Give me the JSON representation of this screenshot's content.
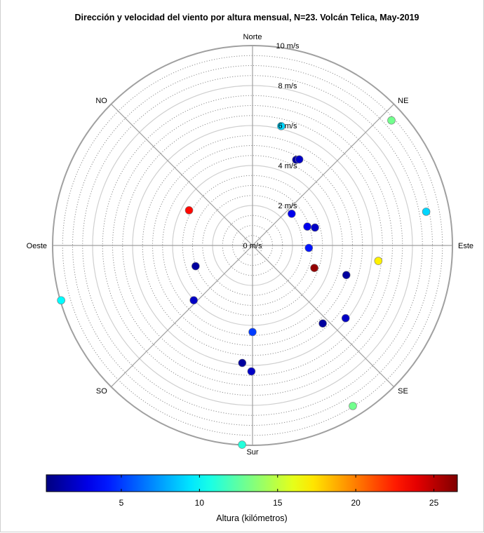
{
  "chart_data": {
    "type": "scatter",
    "subtype": "polar",
    "title": "Dirección y velocidad del viento por altura mensual, N=23. Volcán Telica, May-2019",
    "directions": [
      "Norte",
      "NE",
      "Este",
      "SE",
      "Sur",
      "SO",
      "Oeste",
      "NO"
    ],
    "direction_angles": [
      0,
      45,
      90,
      135,
      180,
      225,
      270,
      315
    ],
    "ring_labels": [
      "0 m/s",
      "2 m/s",
      "4 m/s",
      "6 m/s",
      "8 m/s",
      "10 m/s"
    ],
    "ring_values": [
      0,
      2,
      4,
      6,
      8,
      10
    ],
    "radial_unit": "m/s",
    "radial_max": 10,
    "grid": true,
    "colorbar": {
      "label": "Altura (kilómetros)",
      "min": 0.2,
      "max": 26.5,
      "ticks": [
        5,
        10,
        15,
        20,
        25
      ],
      "colormap": "jet",
      "placement": "bottom"
    },
    "points": [
      {
        "direction": 13.5,
        "speed": 6.14,
        "altura": 9
      },
      {
        "direction": 27,
        "speed": 4.81,
        "altura": 1
      },
      {
        "direction": 28.5,
        "speed": 4.9,
        "altura": 2
      },
      {
        "direction": 51,
        "speed": 2.52,
        "altura": 3
      },
      {
        "direction": 71,
        "speed": 2.9,
        "altura": 3
      },
      {
        "direction": 74,
        "speed": 3.25,
        "altura": 2
      },
      {
        "direction": 92.5,
        "speed": 2.82,
        "altura": 4
      },
      {
        "direction": 48,
        "speed": 9.35,
        "altura": 13
      },
      {
        "direction": 79,
        "speed": 8.85,
        "altura": 9
      },
      {
        "direction": 97,
        "speed": 6.34,
        "altura": 17
      },
      {
        "direction": 110,
        "speed": 3.29,
        "altura": 26
      },
      {
        "direction": 107.5,
        "speed": 4.92,
        "altura": 1
      },
      {
        "direction": 138,
        "speed": 5.25,
        "altura": 1
      },
      {
        "direction": 128,
        "speed": 5.91,
        "altura": 2
      },
      {
        "direction": 180,
        "speed": 4.33,
        "altura": 5
      },
      {
        "direction": 185,
        "speed": 5.9,
        "altura": 1
      },
      {
        "direction": 180.5,
        "speed": 6.3,
        "altura": 2
      },
      {
        "direction": 148,
        "speed": 9.47,
        "altura": 13
      },
      {
        "direction": 183,
        "speed": 9.98,
        "altura": 11
      },
      {
        "direction": 227,
        "speed": 4.02,
        "altura": 2
      },
      {
        "direction": 250,
        "speed": 3.03,
        "altura": 1
      },
      {
        "direction": 254,
        "speed": 9.96,
        "altura": 10
      },
      {
        "direction": 299,
        "speed": 3.63,
        "altura": 23
      }
    ]
  },
  "colors": {
    "axis": "#a0a0a0",
    "grid_dotted": "#8c8c8c",
    "grid_solid": "#cfcfcf"
  }
}
